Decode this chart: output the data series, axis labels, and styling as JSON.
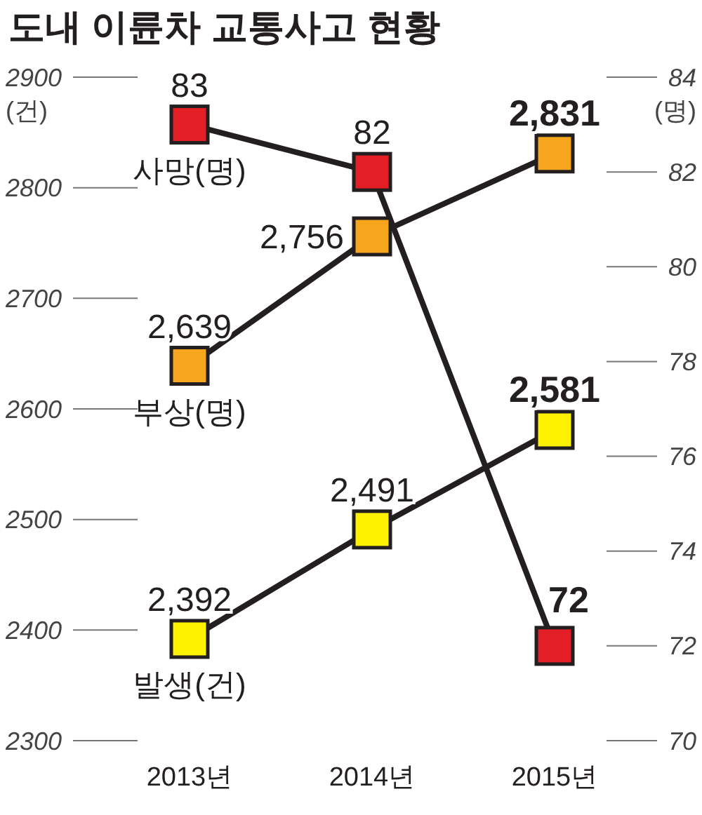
{
  "chart_data": {
    "type": "line",
    "title": "도내 이륜차 교통사고 현황",
    "ylabel": "(건)",
    "y2label": "(명)",
    "categories": [
      "2013년",
      "2014년",
      "2015년"
    ],
    "ylim": [
      2300,
      2900
    ],
    "yticks": [
      2300,
      2400,
      2500,
      2600,
      2700,
      2800,
      2900
    ],
    "y2lim": [
      70,
      84
    ],
    "y2ticks": [
      70,
      72,
      74,
      76,
      78,
      80,
      82,
      84
    ],
    "marker": "square",
    "grid": false,
    "series": [
      {
        "name": "사망(명)",
        "color": "#e31e24",
        "values": [
          83,
          82,
          72
        ],
        "axis": "y2",
        "value_labels": [
          "83",
          "82",
          "72"
        ]
      },
      {
        "name": "부상(명)",
        "color": "#f7a51c",
        "values": [
          2639,
          2756,
          2831
        ],
        "value_labels": [
          "2,639",
          "2,756",
          "2,831"
        ]
      },
      {
        "name": "발생(건)",
        "color": "#fff200",
        "values": [
          2392,
          2491,
          2581
        ],
        "value_labels": [
          "2,392",
          "2,491",
          "2,581"
        ]
      }
    ]
  }
}
